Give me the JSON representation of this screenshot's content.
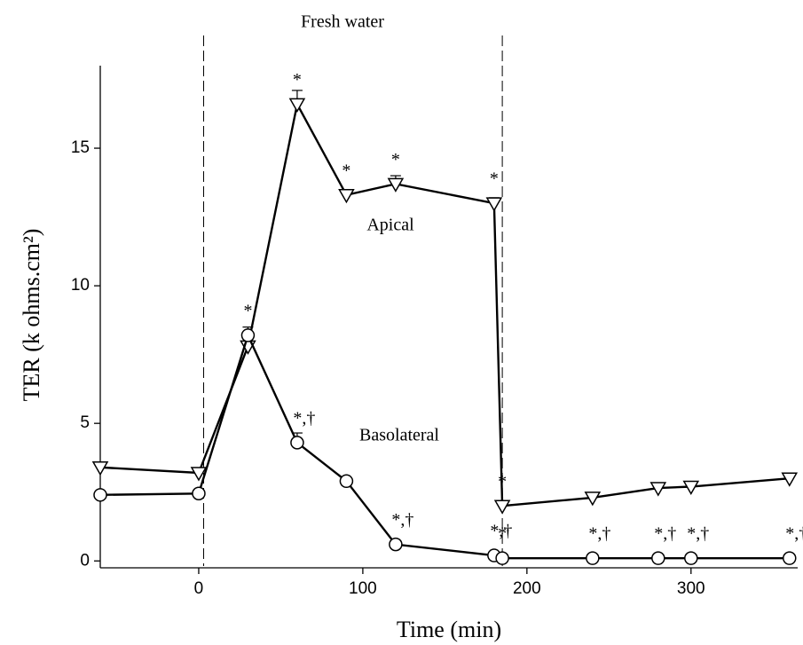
{
  "chart_data": {
    "type": "line",
    "title": "Fresh water",
    "x_label": "Time (min)",
    "y_label": "TER (k ohms.cm²)",
    "x": [
      -60,
      0,
      30,
      60,
      90,
      120,
      180,
      185,
      240,
      280,
      300,
      360
    ],
    "series": [
      {
        "name": "Apical",
        "color": "#000000",
        "marker": "triangle-down",
        "values": [
          3.4,
          3.2,
          7.8,
          16.6,
          13.3,
          13.7,
          13.0,
          2.0,
          2.3,
          2.65,
          2.7,
          3.0
        ],
        "errors": [
          0.1,
          0.1,
          0.15,
          0.5,
          0.15,
          0.3,
          0.2,
          0.1,
          0.1,
          0.1,
          0.1,
          0.1
        ],
        "point_labels": [
          null,
          null,
          null,
          "*",
          "*",
          "*",
          "*",
          "*",
          null,
          null,
          null,
          null
        ]
      },
      {
        "name": "Basolateral",
        "color": "#000000",
        "marker": "circle",
        "values": [
          2.4,
          2.45,
          8.2,
          4.3,
          2.9,
          0.6,
          0.2,
          0.1,
          0.1,
          0.1,
          0.1,
          0.1
        ],
        "errors": [
          0.1,
          0.1,
          0.3,
          0.35,
          0.15,
          0.05,
          0.05,
          0.05,
          0.05,
          0.05,
          0.05,
          0.05
        ],
        "point_labels": [
          null,
          null,
          "*",
          "*,†",
          null,
          "*,†",
          "*,†",
          "*",
          "*,†",
          "*,†",
          "*,†",
          "*,†"
        ]
      }
    ],
    "vlines": [
      3,
      185
    ],
    "xlim": [
      -60,
      365
    ],
    "ylim": [
      -0.25,
      18
    ],
    "xticks": [
      0,
      100,
      200,
      300
    ],
    "yticks": [
      0,
      5,
      10,
      15
    ]
  }
}
